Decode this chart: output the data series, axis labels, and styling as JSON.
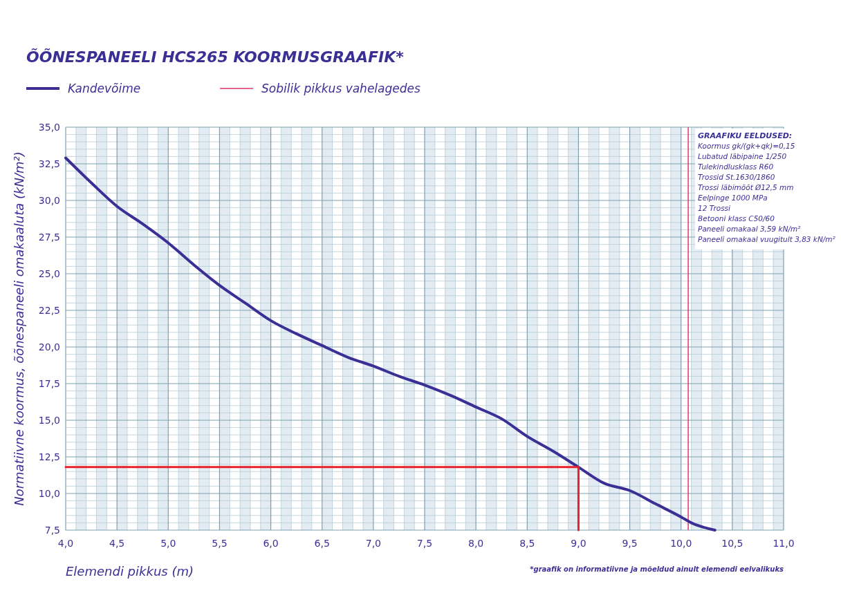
{
  "chart_data": {
    "type": "line",
    "title": "ÕÕNESPANEELI HCS265 KOORMUSGRAAFIK*",
    "xlabel": "Elemendi pikkus (m)",
    "ylabel": "Normatiivne koormus, õõnespaneeli omakaaluta (kN/m²)",
    "series": [
      {
        "name": "Kandevõime",
        "color": "#3b2f96",
        "x": [
          4.0,
          4.25,
          4.5,
          4.75,
          5.0,
          5.25,
          5.5,
          5.75,
          6.0,
          6.25,
          6.5,
          6.75,
          7.0,
          7.25,
          7.5,
          7.75,
          8.0,
          8.25,
          8.5,
          8.75,
          9.0,
          9.25,
          9.5,
          9.75,
          10.0,
          10.1,
          10.33
        ],
        "values": [
          32.9,
          31.2,
          29.6,
          28.4,
          27.1,
          25.6,
          24.2,
          23.0,
          21.8,
          20.9,
          20.1,
          19.3,
          18.7,
          18.0,
          17.4,
          16.7,
          15.9,
          15.1,
          13.9,
          12.9,
          11.8,
          10.7,
          10.2,
          9.3,
          8.4,
          8.0,
          7.5
        ]
      },
      {
        "color": "#e8202a",
        "x": [
          4.0,
          9.0,
          9.0
        ],
        "values": [
          11.8,
          11.8,
          7.5
        ]
      }
    ],
    "ref_lines": [
      {
        "axis": "x",
        "value": 10.07,
        "label": "Sobilik pikkus vahelagedes",
        "color": "#e0326e"
      }
    ],
    "xlim": [
      4.0,
      11.0
    ],
    "ylim": [
      7.5,
      35.0
    ],
    "xticks": [
      {
        "value": 4.0,
        "label": "4,0"
      },
      {
        "value": 4.5,
        "label": "4,5"
      },
      {
        "value": 5.0,
        "label": "5,0"
      },
      {
        "value": 5.5,
        "label": "5,5"
      },
      {
        "value": 6.0,
        "label": "6,0"
      },
      {
        "value": 6.5,
        "label": "6,5"
      },
      {
        "value": 7.0,
        "label": "7,0"
      },
      {
        "value": 7.5,
        "label": "7,5"
      },
      {
        "value": 8.0,
        "label": "8,0"
      },
      {
        "value": 8.5,
        "label": "8,5"
      },
      {
        "value": 9.0,
        "label": "9,0"
      },
      {
        "value": 9.5,
        "label": "9,5"
      },
      {
        "value": 10.0,
        "label": "10,0"
      },
      {
        "value": 10.5,
        "label": "10,5"
      },
      {
        "value": 11.0,
        "label": "11,0"
      }
    ],
    "yticks": [
      {
        "value": 7.5,
        "label": "7,5"
      },
      {
        "value": 10.0,
        "label": "10,0"
      },
      {
        "value": 12.5,
        "label": "12,5"
      },
      {
        "value": 15.0,
        "label": "15,0"
      },
      {
        "value": 17.5,
        "label": "17,5"
      },
      {
        "value": 20.0,
        "label": "20,0"
      },
      {
        "value": 22.5,
        "label": "22,5"
      },
      {
        "value": 25.0,
        "label": "25,0"
      },
      {
        "value": 27.5,
        "label": "27,5"
      },
      {
        "value": 30.0,
        "label": "30,0"
      },
      {
        "value": 32.5,
        "label": "32,5"
      },
      {
        "value": 35.0,
        "label": "35,0"
      }
    ],
    "grid": true,
    "legend": "top left",
    "marker": "none",
    "line_style": "solid",
    "annotations": [
      "GRAAFIKU EELDUSED:",
      "Koormus gk/(gk+qk)=0,15",
      "Lubatud läbipaine 1/250",
      "Tulekindlusklass R60",
      "Trossid St.1630/1860",
      "Trossi läbimõõt Ø12,5 mm",
      "Eelpinge 1000 MPa",
      "12 Trossi",
      "Betooni klass C50/60",
      "Paneeli omakaal 3,59 kN/m²",
      "Paneeli omakaal vuugitult 3,83 kN/m²",
      "*graafik on informatiivne ja mõeldud ainult elemendi eelvalikuks"
    ]
  }
}
